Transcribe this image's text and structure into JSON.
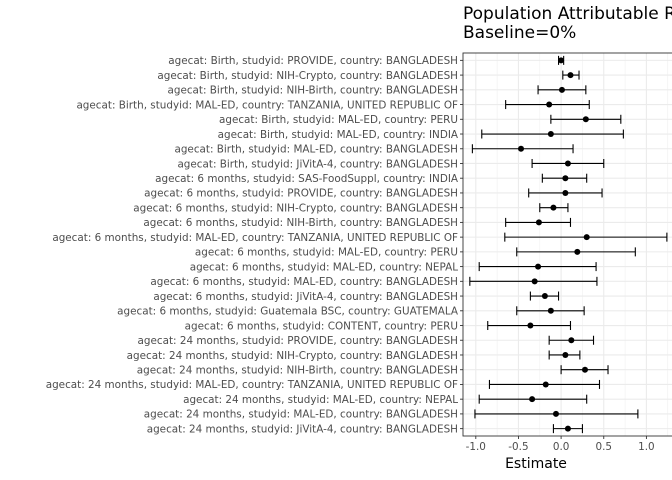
{
  "chart_data": {
    "type": "forest",
    "title": "Population Attributable Ris",
    "subtitle": "Baseline=0%",
    "xlabel": "Estimate",
    "ylabel": "",
    "xlim": [
      -1.15,
      1.3
    ],
    "xticks": [
      -1.0,
      -0.5,
      0.0,
      0.5,
      1.0
    ],
    "xtick_labels": [
      "-1.0",
      "-0.5",
      "0.0",
      "0.5",
      "1.0"
    ],
    "grid": true,
    "legend": "none",
    "point_color": "#000000",
    "rows": [
      {
        "label": "agecat: Birth, studyid: PROVIDE, country: BANGLADESH",
        "estimate": 0.0,
        "lower": -0.03,
        "upper": 0.03
      },
      {
        "label": "agecat: Birth, studyid: NIH-Crypto, country: BANGLADESH",
        "estimate": 0.11,
        "lower": 0.02,
        "upper": 0.21
      },
      {
        "label": "agecat: Birth, studyid: NIH-Birth, country: BANGLADESH",
        "estimate": 0.01,
        "lower": -0.27,
        "upper": 0.29
      },
      {
        "label": "agecat: Birth, studyid: MAL-ED, country: TANZANIA, UNITED REPUBLIC OF",
        "estimate": -0.14,
        "lower": -0.65,
        "upper": 0.33
      },
      {
        "label": "agecat: Birth, studyid: MAL-ED, country: PERU",
        "estimate": 0.29,
        "lower": -0.12,
        "upper": 0.7
      },
      {
        "label": "agecat: Birth, studyid: MAL-ED, country: INDIA",
        "estimate": -0.12,
        "lower": -0.93,
        "upper": 0.73
      },
      {
        "label": "agecat: Birth, studyid: MAL-ED, country: BANGLADESH",
        "estimate": -0.47,
        "lower": -1.04,
        "upper": 0.14
      },
      {
        "label": "agecat: Birth, studyid: JiVitA-4, country: BANGLADESH",
        "estimate": 0.08,
        "lower": -0.34,
        "upper": 0.5
      },
      {
        "label": "agecat: 6 months, studyid: SAS-FoodSuppl, country: INDIA",
        "estimate": 0.05,
        "lower": -0.22,
        "upper": 0.3
      },
      {
        "label": "agecat: 6 months, studyid: PROVIDE, country: BANGLADESH",
        "estimate": 0.05,
        "lower": -0.38,
        "upper": 0.48
      },
      {
        "label": "agecat: 6 months, studyid: NIH-Crypto, country: BANGLADESH",
        "estimate": -0.09,
        "lower": -0.25,
        "upper": 0.08
      },
      {
        "label": "agecat: 6 months, studyid: NIH-Birth, country: BANGLADESH",
        "estimate": -0.26,
        "lower": -0.65,
        "upper": 0.11
      },
      {
        "label": "agecat: 6 months, studyid: MAL-ED, country: TANZANIA, UNITED REPUBLIC OF",
        "estimate": 0.3,
        "lower": -0.66,
        "upper": 1.24
      },
      {
        "label": "agecat: 6 months, studyid: MAL-ED, country: PERU",
        "estimate": 0.19,
        "lower": -0.52,
        "upper": 0.87
      },
      {
        "label": "agecat: 6 months, studyid: MAL-ED, country: NEPAL",
        "estimate": -0.27,
        "lower": -0.96,
        "upper": 0.41
      },
      {
        "label": "agecat: 6 months, studyid: MAL-ED, country: BANGLADESH",
        "estimate": -0.31,
        "lower": -1.07,
        "upper": 0.42
      },
      {
        "label": "agecat: 6 months, studyid: JiVitA-4, country: BANGLADESH",
        "estimate": -0.19,
        "lower": -0.36,
        "upper": -0.03
      },
      {
        "label": "agecat: 6 months, studyid: Guatemala BSC, country: GUATEMALA",
        "estimate": -0.12,
        "lower": -0.52,
        "upper": 0.27
      },
      {
        "label": "agecat: 6 months, studyid: CONTENT, country: PERU",
        "estimate": -0.36,
        "lower": -0.86,
        "upper": 0.11
      },
      {
        "label": "agecat: 24 months, studyid: PROVIDE, country: BANGLADESH",
        "estimate": 0.12,
        "lower": -0.14,
        "upper": 0.38
      },
      {
        "label": "agecat: 24 months, studyid: NIH-Crypto, country: BANGLADESH",
        "estimate": 0.05,
        "lower": -0.14,
        "upper": 0.22
      },
      {
        "label": "agecat: 24 months, studyid: NIH-Birth, country: BANGLADESH",
        "estimate": 0.28,
        "lower": 0.0,
        "upper": 0.55
      },
      {
        "label": "agecat: 24 months, studyid: MAL-ED, country: TANZANIA, UNITED REPUBLIC OF",
        "estimate": -0.18,
        "lower": -0.84,
        "upper": 0.45
      },
      {
        "label": "agecat: 24 months, studyid: MAL-ED, country: NEPAL",
        "estimate": -0.34,
        "lower": -0.96,
        "upper": 0.3
      },
      {
        "label": "agecat: 24 months, studyid: MAL-ED, country: BANGLADESH",
        "estimate": -0.06,
        "lower": -1.01,
        "upper": 0.9
      },
      {
        "label": "agecat: 24 months, studyid: JiVitA-4, country: BANGLADESH",
        "estimate": 0.08,
        "lower": -0.09,
        "upper": 0.25
      }
    ]
  }
}
